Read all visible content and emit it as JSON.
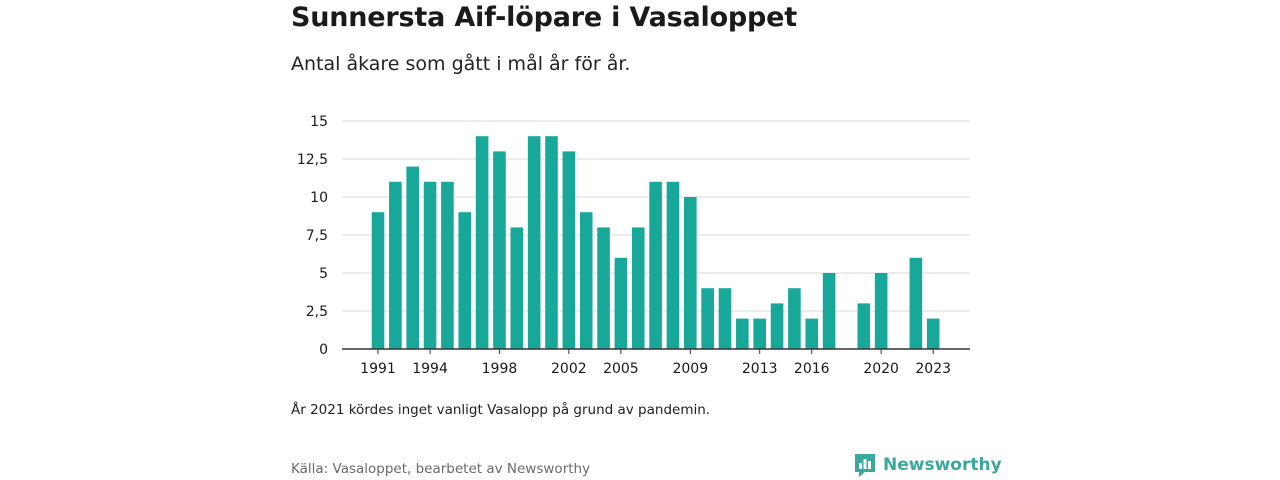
{
  "header": {
    "title": "Sunnersta Aif-löpare i Vasaloppet",
    "subtitle": "Antal åkare som gått i mål år för år."
  },
  "footer": {
    "note": "År 2021 kördes inget vanligt Vasalopp på grund av pandemin.",
    "source": "Källa: Vasaloppet, bearbetet av Newsworthy",
    "brand": "Newsworthy",
    "brand_icon": "newsworthy-logo-icon"
  },
  "colors": {
    "bar": "#17a89a",
    "grid": "#d9d9d9",
    "axis": "#333333",
    "brand": "#3aa89a"
  },
  "chart_data": {
    "type": "bar",
    "x": [
      1991,
      1992,
      1993,
      1994,
      1995,
      1996,
      1997,
      1998,
      1999,
      2000,
      2001,
      2002,
      2003,
      2004,
      2005,
      2006,
      2007,
      2008,
      2009,
      2010,
      2011,
      2012,
      2013,
      2014,
      2015,
      2016,
      2017,
      2018,
      2019,
      2020,
      2021,
      2022,
      2023
    ],
    "values": [
      9,
      11,
      12,
      11,
      11,
      9,
      14,
      13,
      8,
      14,
      14,
      13,
      9,
      8,
      6,
      8,
      11,
      11,
      10,
      4,
      4,
      2,
      2,
      3,
      4,
      2,
      5,
      null,
      3,
      5,
      null,
      6,
      2
    ],
    "x_tick_labels": [
      "1991",
      "1994",
      "1998",
      "2002",
      "2005",
      "2009",
      "2013",
      "2016",
      "2020",
      "2023"
    ],
    "y_ticks": [
      0,
      2.5,
      5,
      7.5,
      10,
      12.5,
      15
    ],
    "y_tick_labels": [
      "0",
      "2,5",
      "5",
      "7,5",
      "10",
      "12,5",
      "15"
    ],
    "ylim": [
      0,
      15
    ],
    "xlabel": "",
    "ylabel": "",
    "grid": true
  }
}
